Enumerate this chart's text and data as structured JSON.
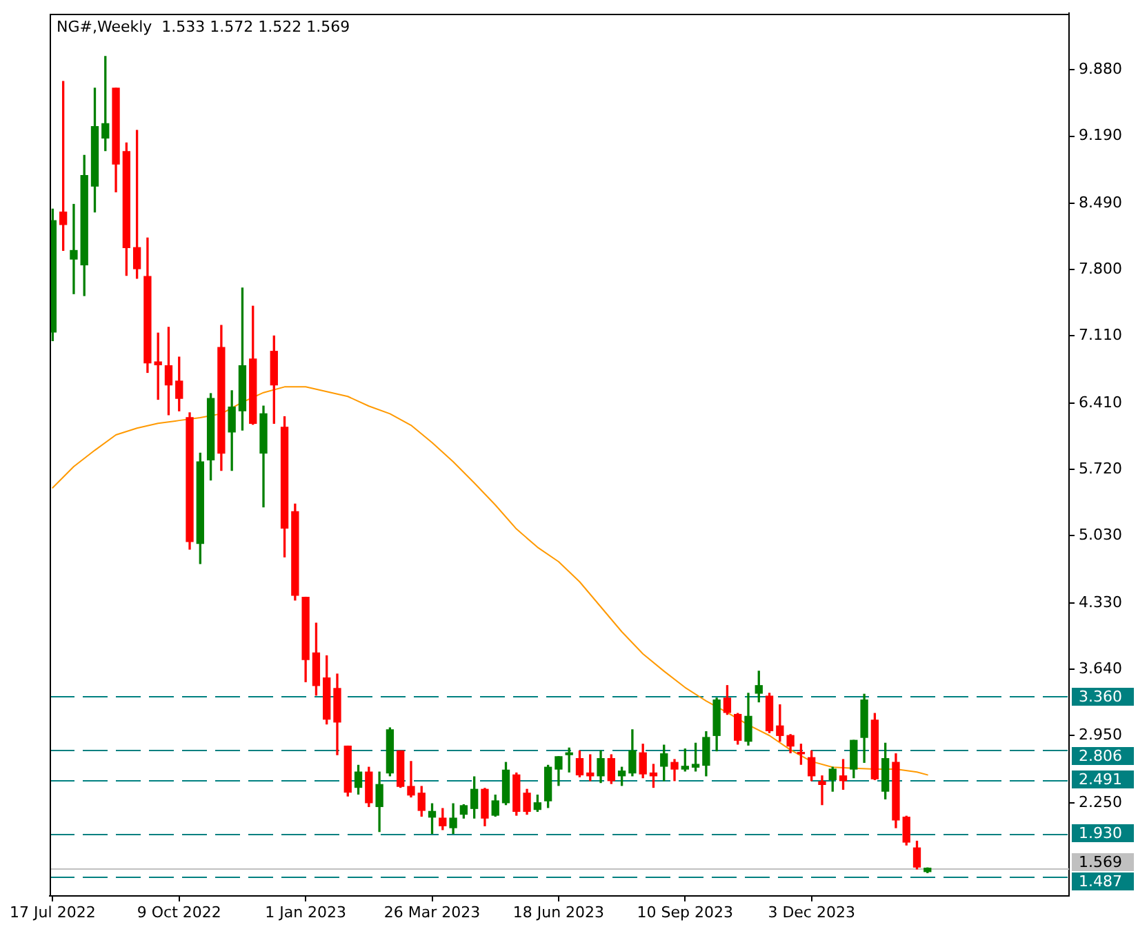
{
  "chart_data": {
    "type": "candlestick",
    "title": "NG#,Weekly  1.533 1.572 1.522 1.569",
    "x": [
      "2022-07-17",
      "2022-07-24",
      "2022-07-31",
      "2022-08-07",
      "2022-08-14",
      "2022-08-21",
      "2022-08-28",
      "2022-09-04",
      "2022-09-11",
      "2022-09-18",
      "2022-09-25",
      "2022-10-02",
      "2022-10-09",
      "2022-10-16",
      "2022-10-23",
      "2022-10-30",
      "2022-11-06",
      "2022-11-13",
      "2022-11-20",
      "2022-11-27",
      "2022-12-04",
      "2022-12-11",
      "2022-12-18",
      "2022-12-25",
      "2023-01-01",
      "2023-01-08",
      "2023-01-15",
      "2023-01-22",
      "2023-01-29",
      "2023-02-05",
      "2023-02-12",
      "2023-02-19",
      "2023-02-26",
      "2023-03-05",
      "2023-03-12",
      "2023-03-19",
      "2023-03-26",
      "2023-04-02",
      "2023-04-09",
      "2023-04-16",
      "2023-04-23",
      "2023-04-30",
      "2023-05-07",
      "2023-05-14",
      "2023-05-21",
      "2023-05-28",
      "2023-06-04",
      "2023-06-11",
      "2023-06-18",
      "2023-06-25",
      "2023-07-02",
      "2023-07-09",
      "2023-07-16",
      "2023-07-23",
      "2023-07-30",
      "2023-08-06",
      "2023-08-13",
      "2023-08-20",
      "2023-08-27",
      "2023-09-03",
      "2023-09-10",
      "2023-09-17",
      "2023-09-24",
      "2023-10-01",
      "2023-10-08",
      "2023-10-15",
      "2023-10-22",
      "2023-10-29",
      "2023-11-05",
      "2023-11-12",
      "2023-11-19",
      "2023-11-26",
      "2023-12-03",
      "2023-12-10",
      "2023-12-17",
      "2023-12-24",
      "2023-12-31",
      "2024-01-07",
      "2024-01-14",
      "2024-01-21",
      "2024-01-28",
      "2024-02-04",
      "2024-02-11",
      "2024-02-18"
    ],
    "series": [
      {
        "ohlc": [
          [
            7.15,
            8.43,
            7.06,
            8.31
          ],
          [
            8.4,
            9.76,
            8.0,
            8.27
          ],
          [
            7.91,
            8.48,
            7.55,
            8.0
          ],
          [
            7.85,
            8.99,
            7.53,
            8.78
          ],
          [
            8.67,
            9.69,
            8.4,
            9.29
          ],
          [
            9.17,
            10.02,
            9.04,
            9.32
          ],
          [
            9.69,
            9.69,
            8.61,
            8.9
          ],
          [
            9.03,
            9.12,
            7.74,
            8.03
          ],
          [
            8.03,
            9.25,
            7.71,
            7.81
          ],
          [
            7.73,
            8.13,
            6.73,
            6.83
          ],
          [
            6.84,
            7.14,
            6.45,
            6.81
          ],
          [
            6.8,
            7.2,
            6.29,
            6.6
          ],
          [
            6.64,
            6.89,
            6.33,
            6.46
          ],
          [
            6.26,
            6.31,
            4.89,
            4.97
          ],
          [
            4.95,
            5.89,
            4.74,
            5.8
          ],
          [
            5.82,
            6.51,
            5.61,
            6.46
          ],
          [
            6.99,
            7.22,
            5.71,
            5.89
          ],
          [
            6.11,
            6.54,
            5.71,
            6.37
          ],
          [
            6.33,
            7.61,
            6.13,
            6.8
          ],
          [
            6.87,
            7.42,
            6.19,
            6.2
          ],
          [
            5.89,
            6.38,
            5.33,
            6.3
          ],
          [
            6.95,
            7.11,
            6.2,
            6.6
          ],
          [
            6.16,
            6.27,
            4.81,
            5.11
          ],
          [
            5.28,
            5.36,
            4.36,
            4.41
          ],
          [
            4.39,
            4.39,
            3.51,
            3.74
          ],
          [
            3.81,
            4.12,
            3.37,
            3.47
          ],
          [
            3.55,
            3.78,
            3.07,
            3.12
          ],
          [
            3.44,
            3.59,
            2.75,
            3.09
          ],
          [
            2.84,
            2.84,
            2.32,
            2.36
          ],
          [
            2.41,
            2.64,
            2.34,
            2.57
          ],
          [
            2.57,
            2.62,
            2.21,
            2.25
          ],
          [
            2.21,
            2.57,
            1.95,
            2.44
          ],
          [
            2.56,
            3.03,
            2.53,
            3.01
          ],
          [
            2.79,
            2.79,
            2.41,
            2.42
          ],
          [
            2.42,
            2.68,
            2.31,
            2.33
          ],
          [
            2.35,
            2.42,
            2.11,
            2.17
          ],
          [
            2.1,
            2.24,
            1.93,
            2.16
          ],
          [
            2.09,
            2.19,
            1.97,
            2.01
          ],
          [
            1.99,
            2.24,
            1.93,
            2.09
          ],
          [
            2.13,
            2.23,
            2.09,
            2.22
          ],
          [
            2.19,
            2.52,
            2.09,
            2.39
          ],
          [
            2.39,
            2.4,
            2.01,
            2.09
          ],
          [
            2.12,
            2.33,
            2.11,
            2.27
          ],
          [
            2.25,
            2.67,
            2.23,
            2.59
          ],
          [
            2.54,
            2.56,
            2.12,
            2.16
          ],
          [
            2.35,
            2.39,
            2.13,
            2.16
          ],
          [
            2.18,
            2.33,
            2.16,
            2.25
          ],
          [
            2.27,
            2.64,
            2.2,
            2.62
          ],
          [
            2.6,
            2.73,
            2.43,
            2.73
          ],
          [
            2.75,
            2.82,
            2.57,
            2.77
          ],
          [
            2.71,
            2.79,
            2.52,
            2.54
          ],
          [
            2.56,
            2.75,
            2.48,
            2.53
          ],
          [
            2.53,
            2.79,
            2.46,
            2.71
          ],
          [
            2.71,
            2.75,
            2.45,
            2.48
          ],
          [
            2.53,
            2.62,
            2.43,
            2.58
          ],
          [
            2.56,
            3.01,
            2.53,
            2.79
          ],
          [
            2.77,
            2.86,
            2.51,
            2.55
          ],
          [
            2.56,
            2.65,
            2.41,
            2.53
          ],
          [
            2.63,
            2.85,
            2.48,
            2.76
          ],
          [
            2.67,
            2.7,
            2.48,
            2.6
          ],
          [
            2.6,
            2.81,
            2.58,
            2.63
          ],
          [
            2.62,
            2.87,
            2.58,
            2.65
          ],
          [
            2.64,
            2.99,
            2.53,
            2.93
          ],
          [
            2.95,
            3.34,
            2.79,
            3.32
          ],
          [
            3.34,
            3.47,
            3.17,
            3.19
          ],
          [
            3.17,
            3.18,
            2.86,
            2.9
          ],
          [
            2.89,
            3.39,
            2.85,
            3.15
          ],
          [
            3.39,
            3.62,
            3.3,
            3.47
          ],
          [
            3.36,
            3.39,
            2.98,
            3.0
          ],
          [
            3.05,
            3.27,
            2.89,
            2.95
          ],
          [
            2.95,
            2.96,
            2.77,
            2.84
          ],
          [
            2.77,
            2.86,
            2.65,
            2.76
          ],
          [
            2.72,
            2.79,
            2.48,
            2.53
          ],
          [
            2.47,
            2.53,
            2.23,
            2.44
          ],
          [
            2.49,
            2.62,
            2.37,
            2.6
          ],
          [
            2.53,
            2.7,
            2.39,
            2.48
          ],
          [
            2.6,
            2.9,
            2.51,
            2.9
          ],
          [
            2.93,
            3.38,
            2.67,
            3.32
          ],
          [
            3.11,
            3.18,
            2.49,
            2.5
          ],
          [
            2.37,
            2.87,
            2.29,
            2.71
          ],
          [
            2.67,
            2.76,
            1.99,
            2.07
          ],
          [
            2.1,
            2.11,
            1.81,
            1.84
          ],
          [
            1.78,
            1.85,
            1.56,
            1.58
          ],
          [
            1.533,
            1.572,
            1.522,
            1.569
          ]
        ],
        "colors": [
          "#008000",
          "#ff0000",
          "#008000",
          "#008000",
          "#008000",
          "#008000",
          "#ff0000",
          "#ff0000",
          "#ff0000",
          "#ff0000",
          "#ff0000",
          "#ff0000",
          "#ff0000",
          "#ff0000",
          "#008000",
          "#008000",
          "#ff0000",
          "#008000",
          "#008000",
          "#ff0000",
          "#008000",
          "#ff0000",
          "#ff0000",
          "#ff0000",
          "#ff0000",
          "#ff0000",
          "#ff0000",
          "#ff0000",
          "#ff0000",
          "#008000",
          "#ff0000",
          "#008000",
          "#008000",
          "#ff0000",
          "#ff0000",
          "#ff0000",
          "#008000",
          "#ff0000",
          "#008000",
          "#008000",
          "#008000",
          "#ff0000",
          "#008000",
          "#008000",
          "#ff0000",
          "#ff0000",
          "#008000",
          "#008000",
          "#008000",
          "#008000",
          "#ff0000",
          "#ff0000",
          "#008000",
          "#ff0000",
          "#008000",
          "#008000",
          "#ff0000",
          "#ff0000",
          "#008000",
          "#ff0000",
          "#008000",
          "#008000",
          "#008000",
          "#008000",
          "#ff0000",
          "#ff0000",
          "#008000",
          "#008000",
          "#ff0000",
          "#ff0000",
          "#ff0000",
          "#ff0000",
          "#ff0000",
          "#ff0000",
          "#008000",
          "#ff0000",
          "#008000",
          "#008000",
          "#ff0000",
          "#008000",
          "#ff0000",
          "#ff0000",
          "#ff0000",
          "#008000"
        ]
      },
      {
        "type": "line",
        "color": "#ff9900",
        "x": [
          "2022-07-17",
          "2022-07-31",
          "2022-08-14",
          "2022-08-28",
          "2022-09-11",
          "2022-09-25",
          "2022-10-09",
          "2022-10-23",
          "2022-11-06",
          "2022-11-20",
          "2022-12-04",
          "2022-12-18",
          "2023-01-01",
          "2023-01-15",
          "2023-01-29",
          "2023-02-12",
          "2023-02-26",
          "2023-03-12",
          "2023-03-26",
          "2023-04-09",
          "2023-04-23",
          "2023-05-07",
          "2023-05-21",
          "2023-06-04",
          "2023-06-18",
          "2023-07-02",
          "2023-07-16",
          "2023-07-30",
          "2023-08-13",
          "2023-08-27",
          "2023-09-10",
          "2023-09-24",
          "2023-10-08",
          "2023-10-22",
          "2023-11-05",
          "2023-11-19",
          "2023-12-03",
          "2023-12-17",
          "2023-12-31",
          "2024-01-14",
          "2024-01-28",
          "2024-02-11",
          "2024-02-18"
        ],
        "values": [
          5.53,
          5.75,
          5.92,
          6.08,
          6.15,
          6.2,
          6.23,
          6.26,
          6.3,
          6.42,
          6.52,
          6.58,
          6.58,
          6.53,
          6.48,
          6.38,
          6.3,
          6.18,
          6.0,
          5.8,
          5.58,
          5.35,
          5.1,
          4.91,
          4.76,
          4.55,
          4.29,
          4.03,
          3.8,
          3.62,
          3.45,
          3.31,
          3.19,
          3.06,
          2.95,
          2.8,
          2.68,
          2.62,
          2.61,
          2.6,
          2.6,
          2.57,
          2.54
        ]
      }
    ],
    "xlim": [
      "2022-07-15",
      "2024-05-22"
    ],
    "xticks": [
      {
        "value": "2022-07-17",
        "label": "17 Jul 2022"
      },
      {
        "value": "2022-10-09",
        "label": "9 Oct 2022"
      },
      {
        "value": "2023-01-01",
        "label": "1 Jan 2023"
      },
      {
        "value": "2023-03-26",
        "label": "26 Mar 2023"
      },
      {
        "value": "2023-06-18",
        "label": "18 Jun 2023"
      },
      {
        "value": "2023-09-10",
        "label": "10 Sep 2023"
      },
      {
        "value": "2023-12-03",
        "label": "3 Dec 2023"
      }
    ],
    "ylim": [
      1.28,
      10.47
    ],
    "yticks": [
      {
        "value": 9.88,
        "label": "9.880"
      },
      {
        "value": 9.19,
        "label": "9.190"
      },
      {
        "value": 8.49,
        "label": "8.490"
      },
      {
        "value": 7.8,
        "label": "7.800"
      },
      {
        "value": 7.11,
        "label": "7.110"
      },
      {
        "value": 6.41,
        "label": "6.410"
      },
      {
        "value": 5.72,
        "label": "5.720"
      },
      {
        "value": 5.03,
        "label": "5.030"
      },
      {
        "value": 4.33,
        "label": "4.330"
      },
      {
        "value": 3.64,
        "label": "3.640"
      },
      {
        "value": 2.95,
        "label": "2.950"
      },
      {
        "value": 2.25,
        "label": "2.250"
      }
    ],
    "ref_lines": [
      {
        "axis": "y",
        "value": 3.36,
        "label": "3.360",
        "color": "#008080",
        "line_style": "dashed"
      },
      {
        "axis": "y",
        "value": 2.806,
        "label": "2.806",
        "color": "#008080",
        "line_style": "dashed"
      },
      {
        "axis": "y",
        "value": 2.491,
        "label": "2.491",
        "color": "#008080",
        "line_style": "dashed"
      },
      {
        "axis": "y",
        "value": 1.93,
        "label": "1.930",
        "color": "#008080",
        "line_style": "dashed"
      },
      {
        "axis": "y",
        "value": 1.487,
        "label": "1.487",
        "color": "#008080",
        "line_style": "dashed"
      },
      {
        "axis": "y",
        "value": 1.569,
        "label": "1.569",
        "color": "#c0c0c0"
      }
    ]
  }
}
